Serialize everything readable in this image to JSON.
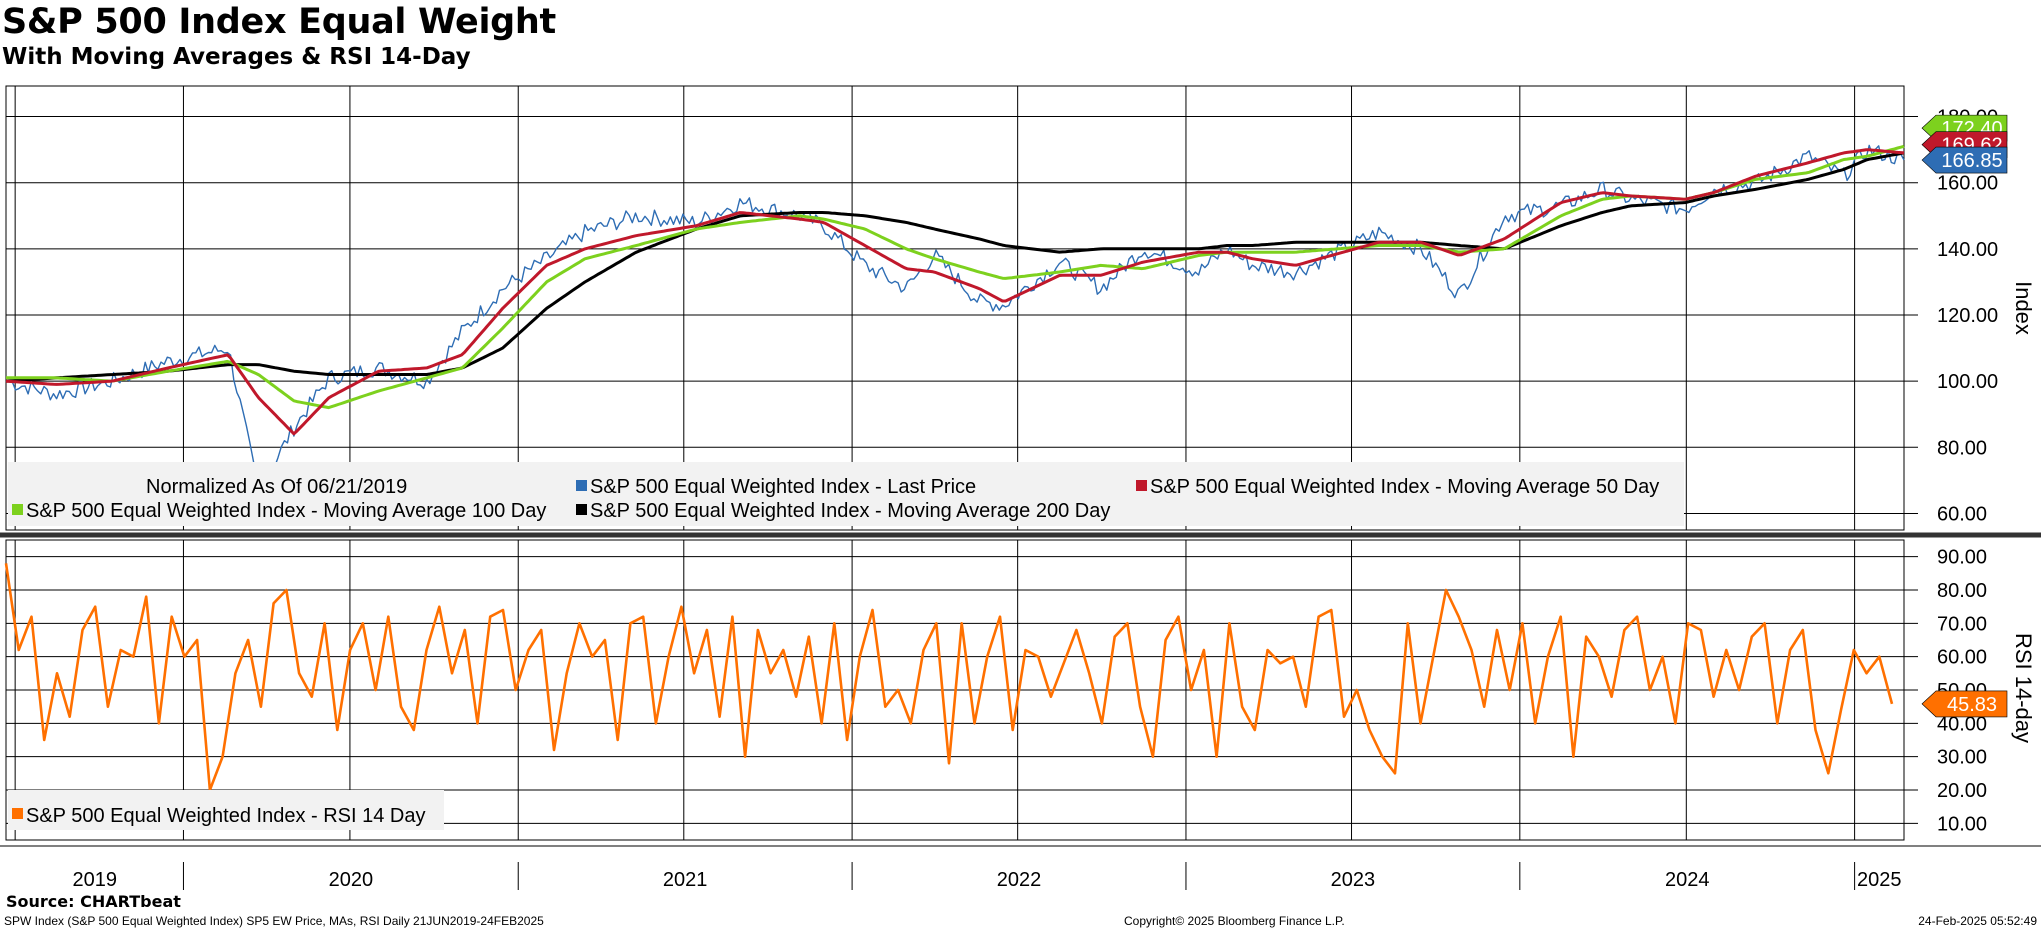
{
  "title": "S&P 500 Index Equal Weight",
  "subtitle": "With Moving Averages & RSI 14-Day",
  "source": "Source: CHARTbeat",
  "footer": {
    "left": "SPW Index (S&P 500 Equal Weighted Index) SP5 EW Price, MAs, RSI  Daily 21JUN2019-24FEB2025",
    "center": "Copyright© 2025 Bloomberg Finance L.P.",
    "right": "24-Feb-2025 05:52:49"
  },
  "chart_data": [
    {
      "type": "line",
      "ylabel": "Index",
      "ylim": [
        55,
        185
      ],
      "yticks": [
        60,
        80,
        100,
        120,
        140,
        160,
        180
      ],
      "ytick_labels": [
        "60.00",
        "80.00",
        "100.00",
        "120.00",
        "140.00",
        "160.00",
        "180.00"
      ],
      "grid": true,
      "note": "Normalized As Of 06/21/2019",
      "x_dates": [
        "2019-06-21",
        "2019-08-15",
        "2019-10-15",
        "2019-12-15",
        "2020-02-19",
        "2020-03-23",
        "2020-05-01",
        "2020-06-08",
        "2020-08-01",
        "2020-09-23",
        "2020-11-01",
        "2020-12-15",
        "2021-02-01",
        "2021-03-15",
        "2021-05-10",
        "2021-07-15",
        "2021-09-01",
        "2021-11-05",
        "2021-12-01",
        "2022-01-15",
        "2022-03-01",
        "2022-04-01",
        "2022-05-20",
        "2022-06-16",
        "2022-08-16",
        "2022-09-30",
        "2022-11-15",
        "2023-01-15",
        "2023-02-15",
        "2023-03-15",
        "2023-05-01",
        "2023-07-31",
        "2023-09-15",
        "2023-10-27",
        "2023-12-15",
        "2024-02-15",
        "2024-03-31",
        "2024-05-01",
        "2024-06-30",
        "2024-07-31",
        "2024-09-15",
        "2024-11-11",
        "2024-12-20",
        "2025-01-15",
        "2025-02-24"
      ],
      "series": [
        {
          "name": "S&P 500 Equal Weighted Index - Last Price",
          "color": "#2E6DB4",
          "values": [
            100,
            96,
            100,
            106,
            110,
            67,
            86,
            101,
            104,
            100,
            115,
            128,
            137,
            145,
            150,
            148,
            154,
            150,
            147,
            135,
            128,
            138,
            124,
            123,
            136,
            128,
            140,
            133,
            140,
            135,
            133,
            145,
            140,
            126,
            150,
            153,
            158,
            155,
            152,
            158,
            160,
            168,
            162,
            170,
            166.85
          ]
        },
        {
          "name": "S&P 500 Equal Weighted Index - Moving Average 50 Day",
          "color": "#C0182B",
          "values": [
            100,
            99,
            100,
            104,
            108,
            95,
            84,
            95,
            103,
            104,
            108,
            122,
            135,
            140,
            144,
            147,
            151,
            149,
            148,
            141,
            134,
            133,
            128,
            124,
            132,
            132,
            136,
            139,
            139,
            137,
            135,
            142,
            142,
            138,
            143,
            154,
            157,
            156,
            155,
            157,
            162,
            166,
            169,
            170,
            169
          ]
        },
        {
          "name": "S&P 500 Equal Weighted Index - Moving Average 100 Day",
          "color": "#7DD11E",
          "values": [
            101,
            101,
            100,
            103,
            106,
            102,
            94,
            92,
            97,
            101,
            104,
            116,
            130,
            137,
            141,
            146,
            148,
            150,
            149,
            146,
            140,
            137,
            133,
            131,
            133,
            135,
            134,
            138,
            139,
            139,
            139,
            141,
            141,
            139,
            140,
            150,
            155,
            156,
            155,
            157,
            161,
            163,
            167,
            168,
            171
          ]
        },
        {
          "name": "S&P 500 Equal Weighted Index - Moving Average 200 Day",
          "color": "#000000",
          "values": [
            100,
            101,
            102,
            103,
            105,
            105,
            103,
            102,
            102,
            102,
            104,
            110,
            122,
            130,
            139,
            146,
            150,
            151,
            151,
            150,
            148,
            146,
            143,
            141,
            139,
            140,
            140,
            140,
            141,
            141,
            142,
            142,
            142,
            141,
            140,
            147,
            151,
            153,
            154,
            156,
            158,
            161,
            164,
            167,
            169
          ]
        }
      ],
      "last_value_tags": [
        {
          "series": "S&P 500 Equal Weighted Index - Moving Average 100 Day",
          "label": "172.40",
          "color": "#7DD11E"
        },
        {
          "series": "S&P 500 Equal Weighted Index - Moving Average 50 Day",
          "label": "169.62",
          "color": "#C0182B"
        },
        {
          "series": "S&P 500 Equal Weighted Index - Last Price",
          "label": "166.85",
          "color": "#2E6DB4"
        }
      ]
    },
    {
      "type": "line",
      "ylabel": "RSI 14-day",
      "ylim": [
        5,
        95
      ],
      "yticks": [
        10,
        20,
        30,
        40,
        50,
        60,
        70,
        80,
        90
      ],
      "ytick_labels": [
        "10.00",
        "20.00",
        "30.00",
        "40.00",
        "50.00",
        "60.00",
        "70.00",
        "80.00",
        "90.00"
      ],
      "grid": true,
      "series": [
        {
          "name": "S&P 500 Equal Weighted Index - RSI 14 Day",
          "color": "#FF7000",
          "values": [
            88,
            62,
            72,
            35,
            55,
            42,
            68,
            75,
            45,
            62,
            60,
            78,
            40,
            72,
            60,
            65,
            20,
            30,
            55,
            65,
            45,
            76,
            80,
            55,
            48,
            70,
            38,
            62,
            70,
            50,
            72,
            45,
            38,
            62,
            75,
            55,
            68,
            40,
            72,
            74,
            50,
            62,
            68,
            32,
            55,
            70,
            60,
            65,
            35,
            70,
            72,
            40,
            60,
            75,
            55,
            68,
            42,
            72,
            30,
            68,
            55,
            62,
            48,
            66,
            40,
            70,
            35,
            60,
            74,
            45,
            50,
            40,
            62,
            70,
            28,
            70,
            40,
            60,
            72,
            38,
            62,
            60,
            48,
            58,
            68,
            55,
            40,
            66,
            70,
            45,
            30,
            65,
            72,
            50,
            62,
            30,
            70,
            45,
            38,
            62,
            58,
            60,
            45,
            72,
            74,
            42,
            50,
            38,
            30,
            25,
            70,
            40,
            60,
            80,
            72,
            62,
            45,
            68,
            50,
            70,
            40,
            60,
            72,
            30,
            66,
            60,
            48,
            68,
            72,
            50,
            60,
            40,
            70,
            68,
            48,
            62,
            50,
            66,
            70,
            40,
            62,
            68,
            38,
            25,
            44,
            62,
            55,
            60,
            45.83
          ]
        }
      ],
      "last_value_tags": [
        {
          "series": "S&P 500 Equal Weighted Index - RSI 14 Day",
          "label": "45.83",
          "color": "#FF7000"
        }
      ]
    }
  ],
  "x_axis": {
    "labels": [
      "2019",
      "2020",
      "2021",
      "2022",
      "2023",
      "2024",
      "2025"
    ],
    "start": "2019-06-21",
    "end": "2025-02-24"
  },
  "legend_top": {
    "note": "Normalized As Of 06/21/2019",
    "items": [
      {
        "label": "S&P 500 Equal Weighted Index - Last Price",
        "color": "#2E6DB4"
      },
      {
        "label": "S&P 500 Equal Weighted Index - Moving Average 50 Day",
        "color": "#C0182B"
      },
      {
        "label": "S&P 500 Equal Weighted Index - Moving Average 100 Day",
        "color": "#7DD11E"
      },
      {
        "label": "S&P 500 Equal Weighted Index - Moving Average 200 Day",
        "color": "#000000"
      }
    ]
  },
  "legend_bottom": {
    "items": [
      {
        "label": "S&P 500 Equal Weighted Index - RSI 14 Day",
        "color": "#FF7000"
      }
    ]
  }
}
